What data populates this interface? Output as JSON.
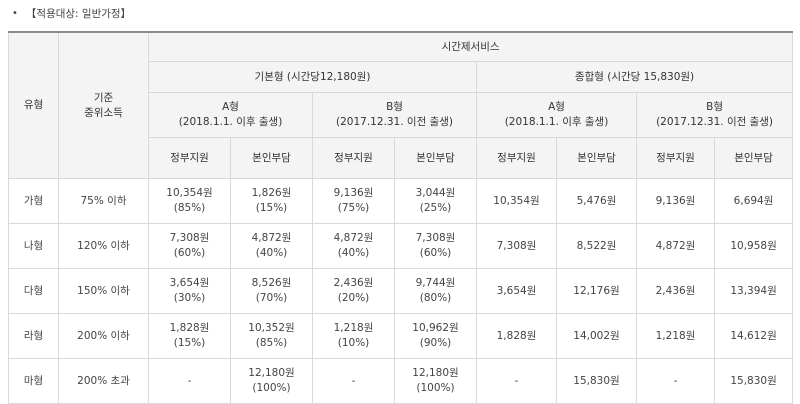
{
  "note": {
    "bullet": "•",
    "text": "【적용대상: 일반가정】"
  },
  "header": {
    "type": "유형",
    "income": "기준\n중위소득",
    "service": "시간제서비스",
    "basic": "기본형 (시간당12,180원)",
    "combined": "종합형 (시간당 15,830원)",
    "a_type": "A형",
    "a_sub": "(2018.1.1. 이후 출생)",
    "b_type": "B형",
    "b_sub": "(2017.12.31. 이전 출생)",
    "gov": "정부지원",
    "self": "본인부담"
  },
  "rows": [
    {
      "type": "가형",
      "income": "75% 이하",
      "basic_a_gov": "10,354원",
      "basic_a_gov_pct": "(85%)",
      "basic_a_self": "1,826원",
      "basic_a_self_pct": "(15%)",
      "basic_b_gov": "9,136원",
      "basic_b_gov_pct": "(75%)",
      "basic_b_self": "3,044원",
      "basic_b_self_pct": "(25%)",
      "comb_a_gov": "10,354원",
      "comb_a_self": "5,476원",
      "comb_b_gov": "9,136원",
      "comb_b_self": "6,694원"
    },
    {
      "type": "나형",
      "income": "120% 이하",
      "basic_a_gov": "7,308원",
      "basic_a_gov_pct": "(60%)",
      "basic_a_self": "4,872원",
      "basic_a_self_pct": "(40%)",
      "basic_b_gov": "4,872원",
      "basic_b_gov_pct": "(40%)",
      "basic_b_self": "7,308원",
      "basic_b_self_pct": "(60%)",
      "comb_a_gov": "7,308원",
      "comb_a_self": "8,522원",
      "comb_b_gov": "4,872원",
      "comb_b_self": "10,958원"
    },
    {
      "type": "다형",
      "income": "150% 이하",
      "basic_a_gov": "3,654원",
      "basic_a_gov_pct": "(30%)",
      "basic_a_self": "8,526원",
      "basic_a_self_pct": "(70%)",
      "basic_b_gov": "2,436원",
      "basic_b_gov_pct": "(20%)",
      "basic_b_self": "9,744원",
      "basic_b_self_pct": "(80%)",
      "comb_a_gov": "3,654원",
      "comb_a_self": "12,176원",
      "comb_b_gov": "2,436원",
      "comb_b_self": "13,394원"
    },
    {
      "type": "라형",
      "income": "200% 이하",
      "basic_a_gov": "1,828원",
      "basic_a_gov_pct": "(15%)",
      "basic_a_self": "10,352원",
      "basic_a_self_pct": "(85%)",
      "basic_b_gov": "1,218원",
      "basic_b_gov_pct": "(10%)",
      "basic_b_self": "10,962원",
      "basic_b_self_pct": "(90%)",
      "comb_a_gov": "1,828원",
      "comb_a_self": "14,002원",
      "comb_b_gov": "1,218원",
      "comb_b_self": "14,612원"
    },
    {
      "type": "마형",
      "income": "200% 초과",
      "basic_a_gov": "-",
      "basic_a_gov_pct": "",
      "basic_a_self": "12,180원",
      "basic_a_self_pct": "(100%)",
      "basic_b_gov": "-",
      "basic_b_gov_pct": "",
      "basic_b_self": "12,180원",
      "basic_b_self_pct": "(100%)",
      "comb_a_gov": "-",
      "comb_a_self": "15,830원",
      "comb_b_gov": "-",
      "comb_b_self": "15,830원"
    }
  ]
}
